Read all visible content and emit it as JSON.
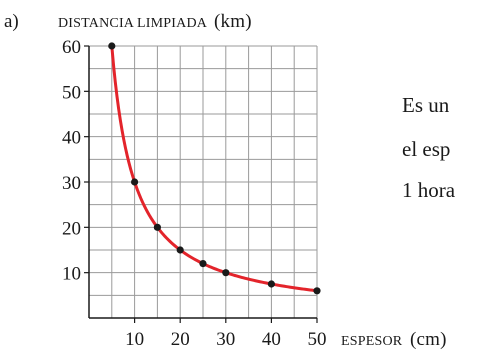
{
  "part_label": "a)",
  "side_text": {
    "lines": [
      "Es un",
      "el esp",
      "1 hora"
    ]
  },
  "chart_data": {
    "type": "line",
    "xlabel": "ESPESOR",
    "xunit": "(cm)",
    "ylabel": "DISTANCIA LIMPIADA",
    "yunit": "(km)",
    "xlim": [
      0,
      50
    ],
    "ylim": [
      0,
      60
    ],
    "x_ticks": [
      10,
      20,
      30,
      40,
      50
    ],
    "y_ticks": [
      10,
      20,
      30,
      40,
      50,
      60
    ],
    "grid": true,
    "grid_step": 5,
    "curve": "y = 300 / x",
    "series": [
      {
        "color": "#e3242b",
        "points": [
          {
            "x": 5,
            "y": 60
          },
          {
            "x": 10,
            "y": 30
          },
          {
            "x": 15,
            "y": 20
          },
          {
            "x": 20,
            "y": 15
          },
          {
            "x": 25,
            "y": 12
          },
          {
            "x": 30,
            "y": 10
          },
          {
            "x": 40,
            "y": 7.5
          },
          {
            "x": 50,
            "y": 6
          }
        ]
      }
    ],
    "marker_color": "#1a1a1a",
    "grid_color": "#9a9a9a"
  }
}
